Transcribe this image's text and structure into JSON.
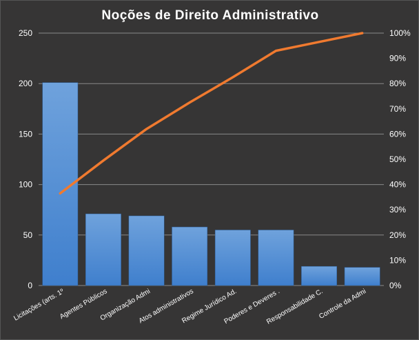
{
  "chart_data": {
    "type": "bar",
    "title": "Noções de Direito  Administrativo",
    "categories": [
      "Licitações (arts. 1º",
      "Agentes Públicos",
      "Organização Admi",
      "Atos administrativos",
      "Regime Jurídico Ad.",
      "Poderes e Deveres .",
      "Responsabilidade C.",
      "Controle da Admi"
    ],
    "series": [
      {
        "type": "bar",
        "values": [
          201,
          71,
          69,
          58,
          55,
          55,
          19,
          18
        ]
      },
      {
        "type": "line",
        "axis": "secondary",
        "values": [
          36.5,
          49.5,
          62,
          72.5,
          82.5,
          93,
          96.5,
          100
        ]
      }
    ],
    "y_left": {
      "min": 0,
      "max": 250,
      "ticks": [
        0,
        50,
        100,
        150,
        200,
        250
      ]
    },
    "y_right": {
      "min": 0,
      "max": 100,
      "ticks": [
        "0%",
        "10%",
        "20%",
        "30%",
        "40%",
        "50%",
        "60%",
        "70%",
        "80%",
        "90%",
        "100%"
      ]
    },
    "grid": true,
    "legend": "none",
    "colors": {
      "bar_top": "#6fa2dc",
      "bar_bottom": "#3f7fcd",
      "line": "#f07a2f",
      "grid": "#8a8a8a",
      "background": "#363535"
    }
  }
}
